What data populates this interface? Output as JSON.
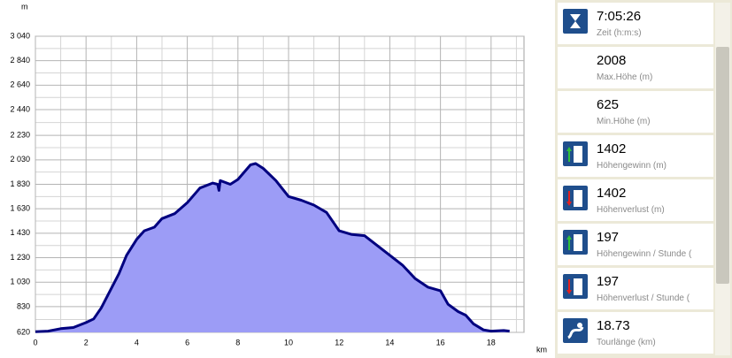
{
  "chart_data": {
    "type": "area",
    "y_label": "m",
    "x_label": "km",
    "x": [
      0,
      0.5,
      1,
      1.5,
      2,
      2.3,
      2.6,
      3,
      3.3,
      3.6,
      4,
      4.3,
      4.7,
      5,
      5.5,
      6,
      6.5,
      7,
      7.2,
      7.25,
      7.3,
      7.7,
      8,
      8.5,
      8.7,
      9,
      9.5,
      10,
      10.5,
      11,
      11.5,
      12,
      12.5,
      13,
      13.5,
      14,
      14.5,
      15,
      15.5,
      16,
      16.3,
      16.7,
      17,
      17.3,
      17.7,
      18,
      18.5,
      18.73
    ],
    "series": [
      {
        "color": "#00007f",
        "fill": "#9c9cf6",
        "values": [
          625,
          630,
          650,
          660,
          700,
          730,
          820,
          980,
          1100,
          1250,
          1380,
          1450,
          1480,
          1550,
          1590,
          1680,
          1800,
          1840,
          1830,
          1780,
          1860,
          1830,
          1870,
          1990,
          2000,
          1960,
          1860,
          1730,
          1700,
          1660,
          1600,
          1450,
          1420,
          1410,
          1330,
          1250,
          1170,
          1060,
          990,
          960,
          850,
          790,
          760,
          690,
          640,
          630,
          635,
          630
        ]
      }
    ],
    "xlim": [
      0,
      19.3
    ],
    "xticks": [
      0,
      2,
      4,
      6,
      8,
      10,
      12,
      14,
      16,
      18
    ],
    "ylim": [
      620,
      3040
    ],
    "yticks": [
      620,
      830,
      {
        "value": 1030,
        "label": "1 030"
      },
      {
        "value": 1230,
        "label": "1 230"
      },
      {
        "value": 1430,
        "label": "1 430"
      },
      {
        "value": 1630,
        "label": "1 630"
      },
      {
        "value": 1830,
        "label": "1 830"
      },
      {
        "value": 2030,
        "label": "2 030"
      },
      {
        "value": 2230,
        "label": "2 230"
      },
      {
        "value": 2440,
        "label": "2 440"
      },
      {
        "value": 2640,
        "label": "2 640"
      },
      {
        "value": 2840,
        "label": "2 840"
      },
      {
        "value": 3040,
        "label": "3 040"
      }
    ],
    "grid": true
  },
  "panel": {
    "items": [
      {
        "value": "7:05:26",
        "label": "Zeit (h:m:s)"
      },
      {
        "value": "2008",
        "label": "Max.Höhe (m)"
      },
      {
        "value": "625",
        "label": "Min.Höhe (m)"
      },
      {
        "value": "1402",
        "label": "Höhengewinn (m)"
      },
      {
        "value": "1402",
        "label": "Höhenverlust (m)"
      },
      {
        "value": "197",
        "label": "Höhengewinn  /  Stunde ("
      },
      {
        "value": "197",
        "label": "Höhenverlust  /  Stunde ("
      },
      {
        "value": "18.73",
        "label": "Tourlänge (km)"
      }
    ]
  }
}
